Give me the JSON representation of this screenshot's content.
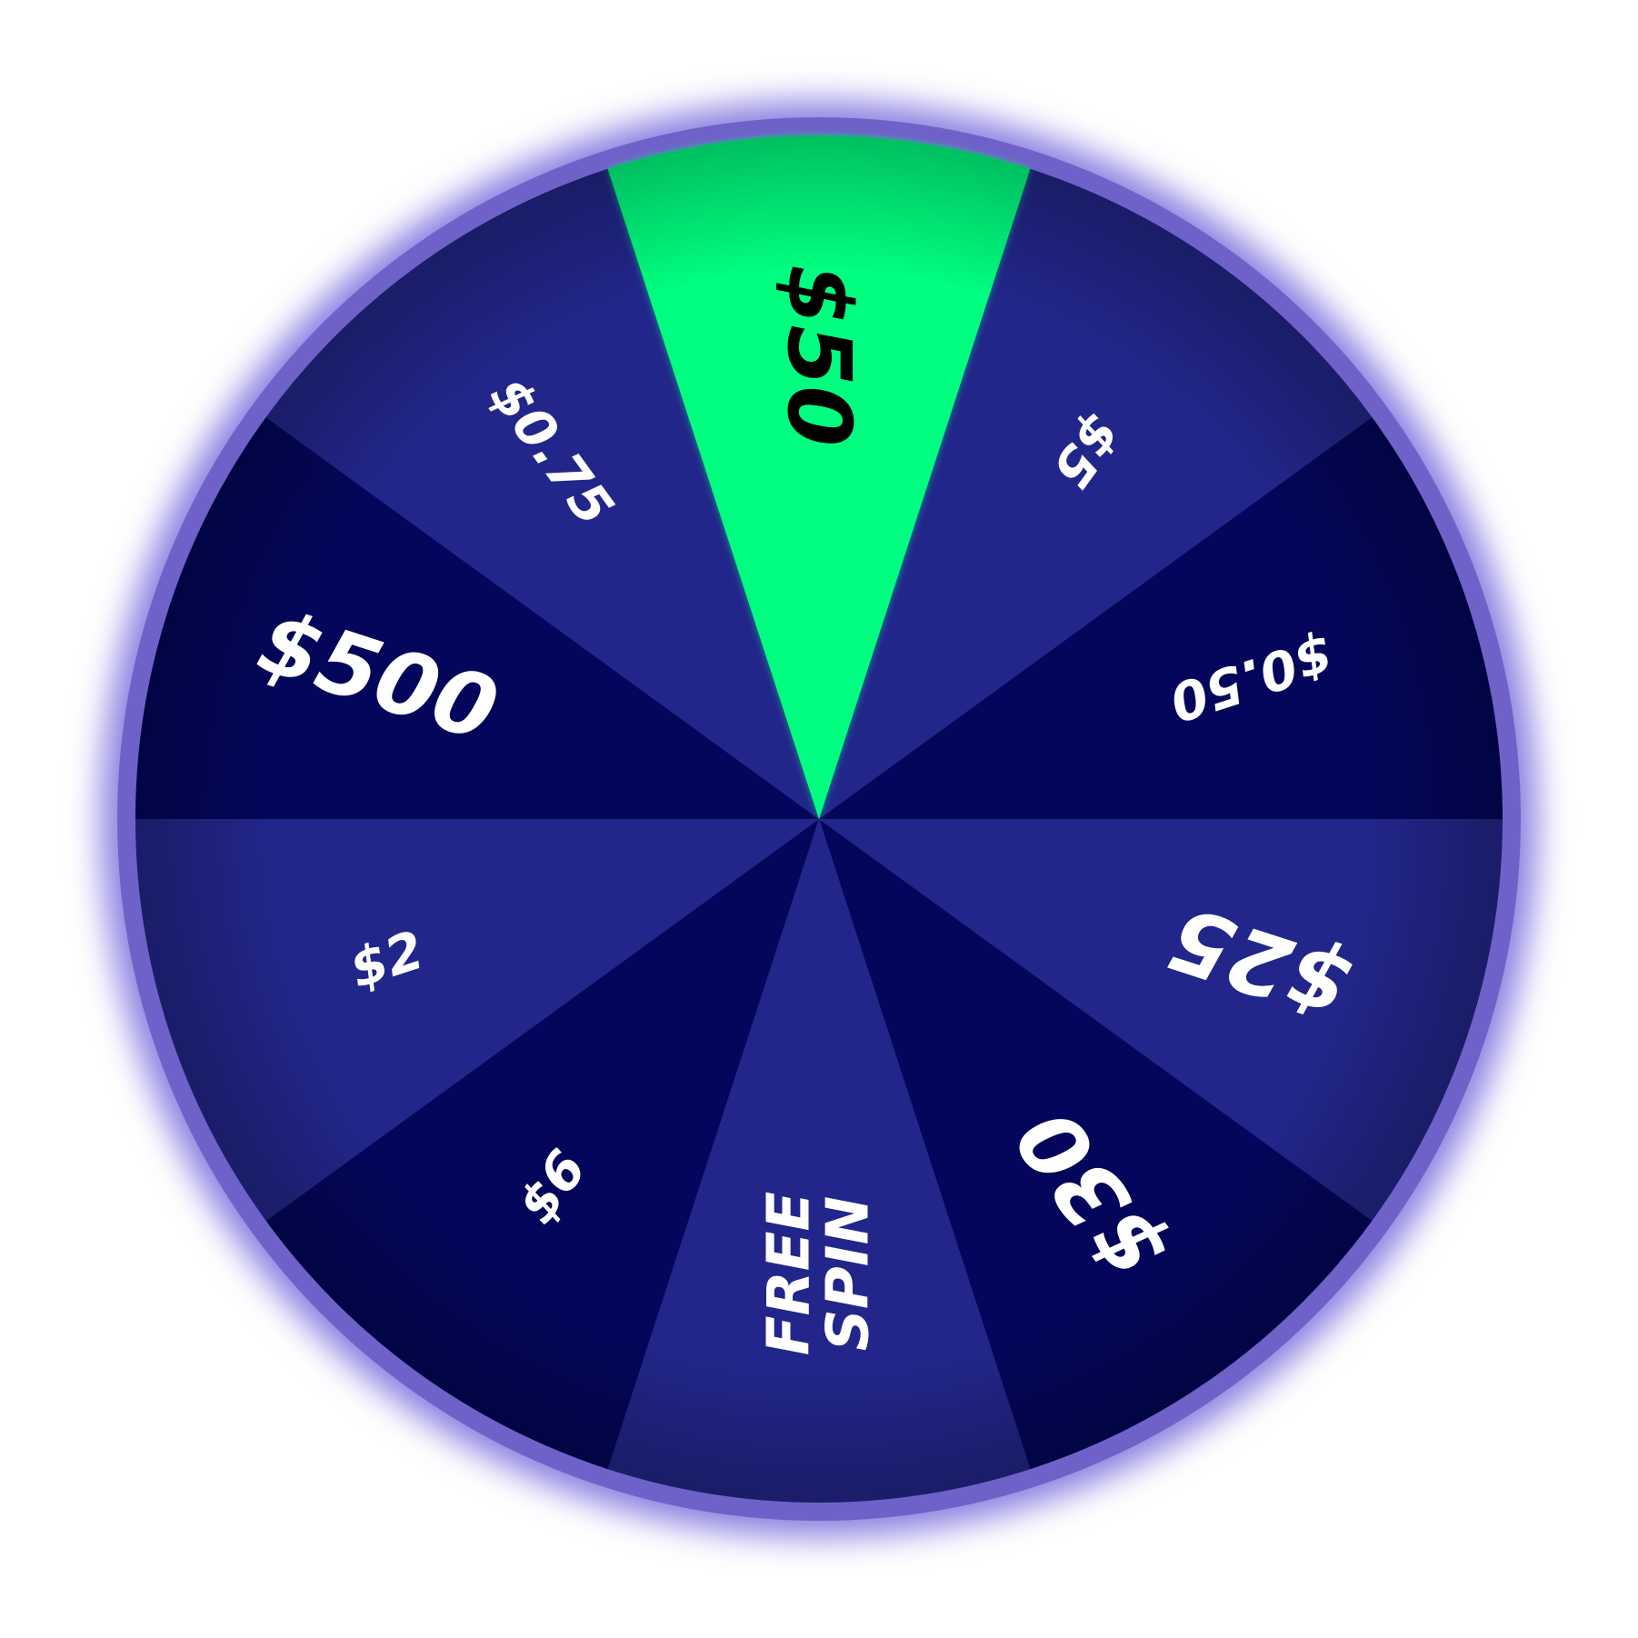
{
  "wheel": {
    "selected_index": 0,
    "colors": {
      "rim": "#6E62C8",
      "glow": "#8A7FE0",
      "segment_light": "#22268A",
      "segment_dark": "#03065A",
      "highlight": "#00FF80",
      "label_light": "#FFFFFF",
      "label_dark": "#000000"
    },
    "segments": [
      {
        "label": "$50",
        "style": "highlight",
        "size": "large"
      },
      {
        "label": "$5",
        "style": "light",
        "size": "small"
      },
      {
        "label": "$0.50",
        "style": "dark",
        "size": "small"
      },
      {
        "label": "$25",
        "style": "light",
        "size": "large"
      },
      {
        "label": "$30",
        "style": "dark",
        "size": "large"
      },
      {
        "label": "FREE\nSPIN",
        "style": "light",
        "size": "medium"
      },
      {
        "label": "$6",
        "style": "dark",
        "size": "small"
      },
      {
        "label": "$2",
        "style": "light",
        "size": "small"
      },
      {
        "label": "$500",
        "style": "dark",
        "size": "large"
      },
      {
        "label": "$0.75",
        "style": "light",
        "size": "small"
      }
    ]
  }
}
